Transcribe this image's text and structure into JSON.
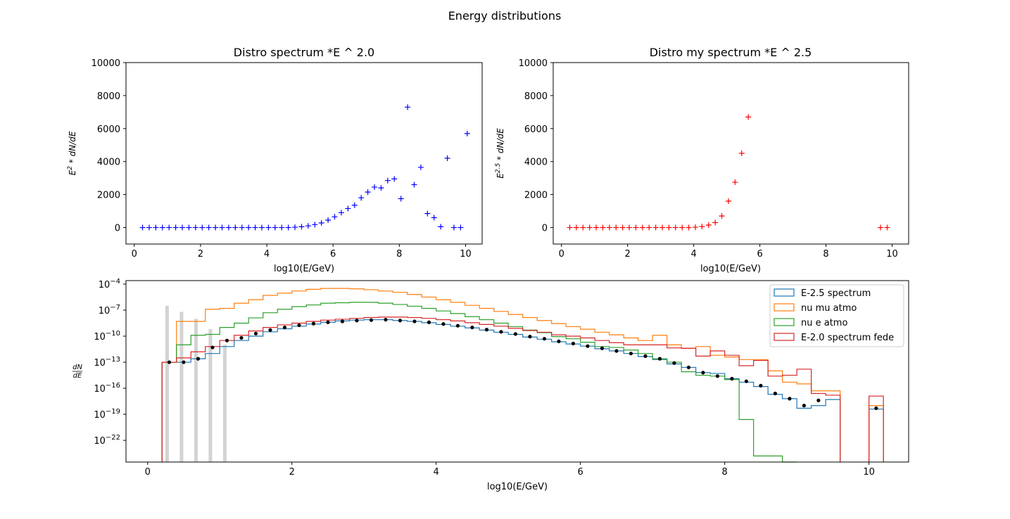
{
  "figure": {
    "title": "Energy distributions"
  },
  "chart_data": [
    {
      "id": "top-left",
      "type": "scatter",
      "title": "Distro spectrum *E ^ 2.0",
      "xlabel": "log10(E/GeV)",
      "ylabel": "E^2 * dN/dE",
      "xlim": [
        -0.25,
        10.5
      ],
      "ylim": [
        -1000,
        10000
      ],
      "xticks": [
        0,
        2,
        4,
        6,
        8,
        10
      ],
      "yticks": [
        0,
        2000,
        4000,
        6000,
        8000,
        10000
      ],
      "marker": "+",
      "color": "#0000ff",
      "x": [
        0.25,
        0.45,
        0.65,
        0.85,
        1.05,
        1.25,
        1.45,
        1.65,
        1.85,
        2.05,
        2.25,
        2.45,
        2.65,
        2.85,
        3.05,
        3.25,
        3.45,
        3.65,
        3.85,
        4.05,
        4.25,
        4.45,
        4.65,
        4.85,
        5.05,
        5.25,
        5.45,
        5.65,
        5.85,
        6.05,
        6.25,
        6.45,
        6.65,
        6.85,
        7.05,
        7.25,
        7.45,
        7.65,
        7.85,
        8.05,
        8.25,
        8.45,
        8.65,
        8.85,
        9.05,
        9.25,
        9.45,
        9.65,
        9.85,
        10.05
      ],
      "y": [
        0,
        0,
        0,
        0,
        0,
        0,
        0,
        0,
        0,
        0,
        0,
        0,
        0,
        0,
        0,
        0,
        0,
        0,
        0,
        0,
        0,
        0,
        0,
        20,
        50,
        100,
        180,
        280,
        450,
        650,
        900,
        1150,
        1350,
        1800,
        2150,
        2450,
        2400,
        2850,
        2950,
        1750,
        7300,
        2600,
        3650,
        850,
        600,
        50,
        4200,
        0,
        0,
        5700
      ]
    },
    {
      "id": "top-right",
      "type": "scatter",
      "title": "Distro my spectrum *E ^ 2.5",
      "xlabel": "log10(E/GeV)",
      "ylabel": "E^2.5 * dN/dE",
      "xlim": [
        -0.25,
        10.5
      ],
      "ylim": [
        -1000,
        10000
      ],
      "xticks": [
        0,
        2,
        4,
        6,
        8,
        10
      ],
      "yticks": [
        0,
        2000,
        4000,
        6000,
        8000,
        10000
      ],
      "marker": "+",
      "color": "#ff0000",
      "x": [
        0.25,
        0.45,
        0.65,
        0.85,
        1.05,
        1.25,
        1.45,
        1.65,
        1.85,
        2.05,
        2.25,
        2.45,
        2.65,
        2.85,
        3.05,
        3.25,
        3.45,
        3.65,
        3.85,
        4.05,
        4.25,
        4.45,
        4.65,
        4.85,
        5.05,
        5.25,
        5.45,
        5.65,
        9.65,
        9.85
      ],
      "y": [
        0,
        0,
        0,
        0,
        0,
        0,
        0,
        0,
        0,
        0,
        0,
        0,
        0,
        0,
        0,
        0,
        0,
        0,
        0,
        20,
        60,
        150,
        300,
        700,
        1600,
        2750,
        4500,
        6700,
        0,
        0
      ]
    },
    {
      "id": "bottom",
      "type": "line",
      "title": "",
      "xlabel": "log10(E/GeV)",
      "ylabel": "dN/dE",
      "yscale": "log",
      "xlim": [
        -0.3,
        10.55
      ],
      "ylim_log10": [
        -24.5,
        -3.6
      ],
      "xticks": [
        0,
        2,
        4,
        6,
        8,
        10
      ],
      "yticks_log10": [
        -22,
        -19,
        -16,
        -13,
        -10,
        -7,
        -4
      ],
      "legend": "top-right",
      "series": [
        {
          "name": "E-2.5 spectrum",
          "color": "#1f77b4",
          "style": "step",
          "x": [
            0.2,
            0.4,
            0.6,
            0.8,
            1.0,
            1.2,
            1.4,
            1.6,
            1.8,
            2.0,
            2.2,
            2.4,
            2.6,
            2.8,
            3.0,
            3.2,
            3.4,
            3.6,
            3.8,
            4.0,
            4.2,
            4.4,
            4.6,
            4.8,
            5.0,
            5.2,
            5.4,
            5.6,
            5.8,
            6.0,
            6.2,
            6.4,
            6.6,
            6.8,
            7.0,
            7.2,
            7.4,
            7.6,
            7.8,
            8.0,
            8.2,
            8.4,
            8.6,
            8.8,
            9.0,
            9.2,
            9.4,
            9.6,
            9.8,
            10.0,
            10.2
          ],
          "log10y": [
            -13.0,
            -13.0,
            -12.6,
            -12.0,
            -11.2,
            -10.5,
            -10.0,
            -9.5,
            -9.15,
            -8.85,
            -8.6,
            -8.4,
            -8.25,
            -8.15,
            -8.1,
            -8.1,
            -8.2,
            -8.3,
            -8.45,
            -8.65,
            -8.85,
            -9.05,
            -9.3,
            -9.55,
            -9.8,
            -10.1,
            -10.35,
            -10.65,
            -10.9,
            -11.15,
            -11.45,
            -11.7,
            -12.0,
            -12.35,
            -12.7,
            -13.2,
            -13.6,
            -14.2,
            -14.3,
            -14.9,
            -15.3,
            -15.8,
            -16.7,
            -17.2,
            -18.3,
            -18.0,
            -17.3,
            null,
            null,
            -18.4
          ]
        },
        {
          "name": "nu mu atmo",
          "color": "#ff7f0e",
          "style": "step",
          "x": [
            0.2,
            0.4,
            0.6,
            0.8,
            1.0,
            1.2,
            1.4,
            1.6,
            1.8,
            2.0,
            2.2,
            2.4,
            2.6,
            2.8,
            3.0,
            3.2,
            3.4,
            3.6,
            3.8,
            4.0,
            4.2,
            4.4,
            4.6,
            4.8,
            5.0,
            5.2,
            5.4,
            5.6,
            5.8,
            6.0,
            6.2,
            6.4,
            6.6,
            6.8,
            7.0,
            7.2,
            7.4,
            7.6,
            7.8,
            8.0,
            8.2,
            8.4,
            8.6,
            8.8,
            9.0,
            9.2,
            9.4,
            9.6,
            9.8,
            10.0,
            10.2
          ],
          "log10y": [
            -13.0,
            -8.3,
            -8.3,
            -6.9,
            -6.8,
            -6.2,
            -5.8,
            -5.3,
            -5.05,
            -4.8,
            -4.6,
            -4.5,
            -4.5,
            -4.55,
            -4.65,
            -4.8,
            -4.95,
            -5.2,
            -5.5,
            -5.8,
            -6.1,
            -6.45,
            -6.8,
            -7.15,
            -7.5,
            -7.85,
            -8.2,
            -8.55,
            -8.9,
            -9.2,
            -9.55,
            -9.85,
            -10.2,
            -10.5,
            -9.9,
            -11.0,
            -11.4,
            -11.2,
            -12.2,
            -12.4,
            -12.7,
            -12.7,
            -14.0,
            -15.3,
            -15.5,
            -16.3,
            -16.3,
            null,
            null,
            -18.0
          ]
        },
        {
          "name": "nu e atmo",
          "color": "#2ca02c",
          "style": "step",
          "x": [
            0.2,
            0.4,
            0.6,
            0.8,
            1.0,
            1.2,
            1.4,
            1.6,
            1.8,
            2.0,
            2.2,
            2.4,
            2.6,
            2.8,
            3.0,
            3.2,
            3.4,
            3.6,
            3.8,
            4.0,
            4.2,
            4.4,
            4.6,
            4.8,
            5.0,
            5.2,
            5.4,
            5.6,
            5.8,
            6.0,
            6.2,
            6.4,
            6.6,
            6.8,
            7.0,
            7.2,
            7.4,
            7.6,
            7.8,
            8.0,
            8.2,
            8.4,
            8.6,
            8.8
          ],
          "log10y": [
            -13.0,
            -11.0,
            -9.9,
            -9.8,
            -9.0,
            -8.5,
            -7.9,
            -7.3,
            -6.9,
            -6.6,
            -6.4,
            -6.2,
            -6.15,
            -6.1,
            -6.1,
            -6.2,
            -6.35,
            -6.55,
            -6.8,
            -7.1,
            -7.4,
            -7.75,
            -8.1,
            -8.5,
            -8.9,
            -9.3,
            -9.6,
            -10.05,
            -10.3,
            -10.7,
            -11.2,
            -11.3,
            -11.6,
            -12.0,
            -12.6,
            -13.0,
            -14.1,
            -14.5,
            -14.6,
            -15.0,
            -19.6,
            -23.8,
            -23.8,
            -24.5
          ]
        },
        {
          "name": "E-2.0 spectrum fede",
          "color": "#d62728",
          "style": "step",
          "x": [
            0.2,
            0.4,
            0.6,
            0.8,
            1.0,
            1.2,
            1.4,
            1.6,
            1.8,
            2.0,
            2.2,
            2.4,
            2.6,
            2.8,
            3.0,
            3.2,
            3.4,
            3.6,
            3.8,
            4.0,
            4.2,
            4.4,
            4.6,
            4.8,
            5.0,
            5.2,
            5.4,
            5.6,
            5.8,
            6.0,
            6.2,
            6.4,
            6.6,
            6.8,
            7.0,
            7.2,
            7.4,
            7.6,
            7.8,
            8.0,
            8.2,
            8.4,
            8.6,
            8.8,
            9.0,
            9.2,
            9.4,
            9.6,
            9.8,
            10.0,
            10.2
          ],
          "log10y": [
            -13.0,
            -12.5,
            -11.8,
            -11.2,
            -10.5,
            -9.9,
            -9.4,
            -9.0,
            -8.7,
            -8.5,
            -8.3,
            -8.15,
            -8.05,
            -7.95,
            -7.85,
            -7.8,
            -7.8,
            -7.85,
            -7.95,
            -8.1,
            -8.25,
            -8.45,
            -8.65,
            -8.85,
            -9.1,
            -9.35,
            -9.55,
            -9.85,
            -10.0,
            -10.2,
            -10.5,
            -10.75,
            -11.0,
            -11.0,
            -11.0,
            -11.35,
            -11.4,
            -12.3,
            -11.7,
            -12.2,
            -13.4,
            -12.8,
            -14.6,
            -14.5,
            -13.8,
            -16.6,
            -16.8,
            null,
            null,
            -16.9
          ]
        },
        {
          "name": "",
          "color": "#000000",
          "style": "points",
          "x": [
            0.3,
            0.5,
            0.7,
            0.9,
            1.1,
            1.3,
            1.5,
            1.7,
            1.9,
            2.1,
            2.3,
            2.5,
            2.7,
            2.9,
            3.1,
            3.3,
            3.5,
            3.7,
            3.9,
            4.1,
            4.3,
            4.5,
            4.7,
            4.9,
            5.1,
            5.3,
            5.5,
            5.7,
            5.9,
            6.1,
            6.3,
            6.5,
            6.7,
            6.9,
            7.1,
            7.3,
            7.5,
            7.7,
            7.9,
            8.1,
            8.3,
            8.5,
            8.7,
            8.9,
            9.1,
            9.3,
            10.1
          ],
          "log10y": [
            -13.0,
            -13.0,
            -12.6,
            -11.3,
            -10.5,
            -10.2,
            -9.7,
            -9.3,
            -9.0,
            -8.75,
            -8.55,
            -8.4,
            -8.3,
            -8.2,
            -8.15,
            -8.1,
            -8.2,
            -8.3,
            -8.4,
            -8.6,
            -8.8,
            -9.0,
            -9.25,
            -9.5,
            -9.75,
            -10.05,
            -10.3,
            -10.6,
            -10.85,
            -11.15,
            -11.4,
            -11.7,
            -12.0,
            -12.3,
            -12.6,
            -13.1,
            -13.6,
            -14.2,
            -14.6,
            -14.9,
            -15.2,
            -15.7,
            -16.6,
            -17.2,
            -18.0,
            -17.4,
            -18.3
          ]
        },
        {
          "name": "",
          "color": "#d3d3d3",
          "style": "bars",
          "x": [
            0.27,
            0.47,
            0.67,
            0.87,
            1.07
          ],
          "log10y": [
            -6.5,
            -7.2,
            -8.0,
            -9.2,
            -11.0
          ]
        }
      ]
    }
  ]
}
